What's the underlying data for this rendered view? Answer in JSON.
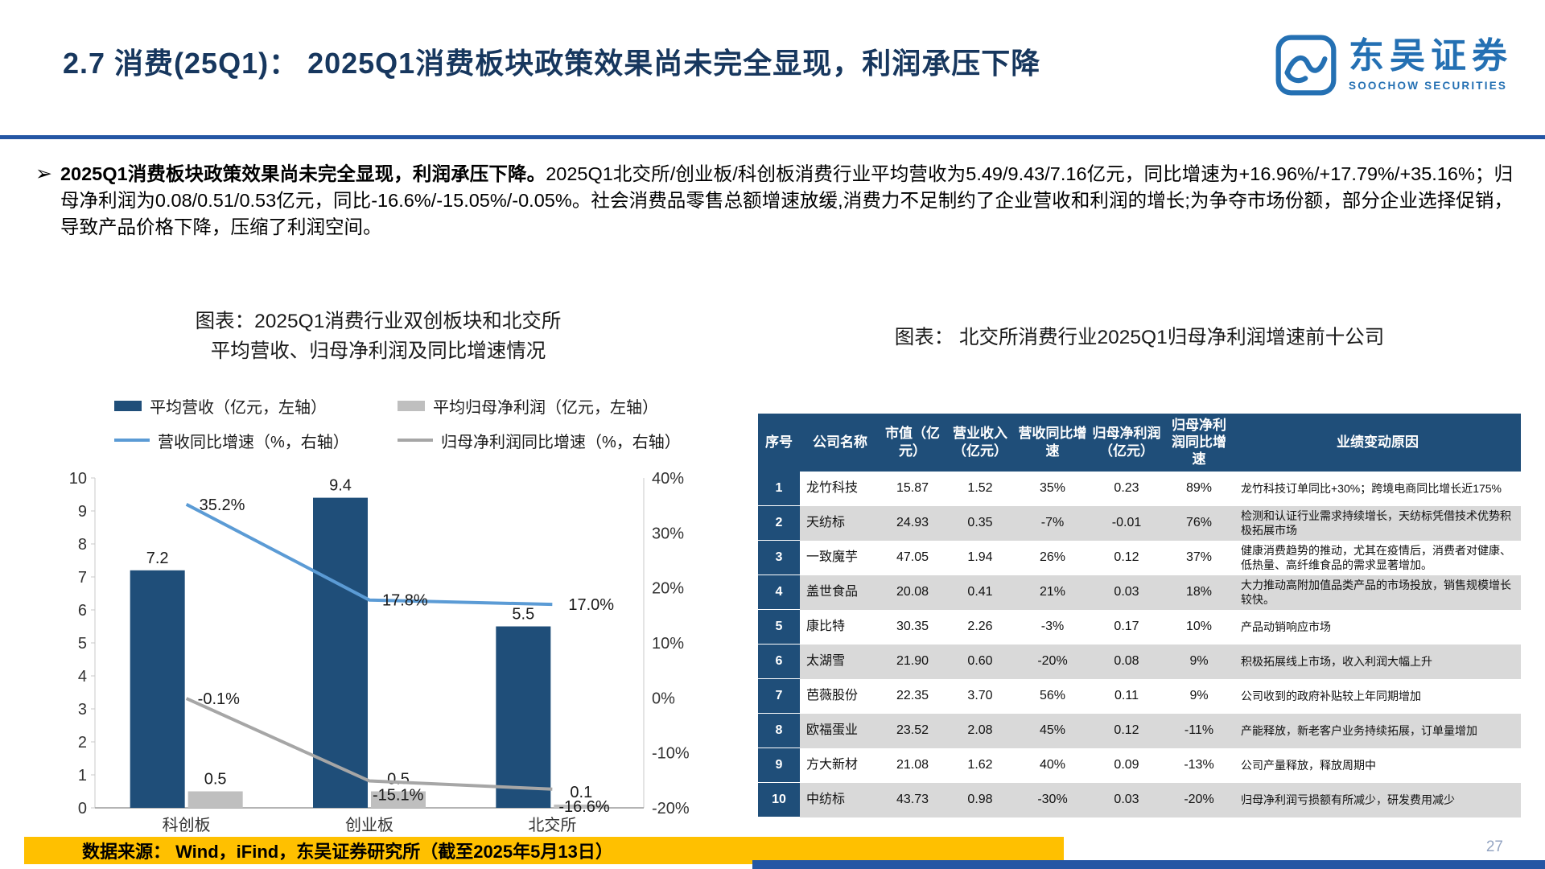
{
  "page": {
    "title": "2.7 消费(25Q1)： 2025Q1消费板块政策效果尚未完全显现，利润承压下降",
    "page_number": "27",
    "accent_blue": "#1F4E79",
    "divider_blue": "#2456A4",
    "footer_orange": "#FFC000"
  },
  "logo": {
    "cn": "东吴证券",
    "en": "SOOCHOW SECURITIES"
  },
  "summary": {
    "marker": "➢",
    "lead": "2025Q1消费板块政策效果尚未完全显现，利润承压下降。",
    "body": "2025Q1北交所/创业板/科创板消费行业平均营收为5.49/9.43/7.16亿元，同比增速为+16.96%/+17.79%/+35.16%；归母净利润为0.08/0.51/0.53亿元，同比-16.6%/-15.05%/-0.05%。社会消费品零售总额增速放缓,消费力不足制约了企业营收和利润的增长;为争夺市场份额，部分企业选择促销，导致产品价格下降，压缩了利润空间。"
  },
  "chart": {
    "title_line1": "图表：2025Q1消费行业双创板块和北交所",
    "title_line2": "平均营收、归母净利润及同比增速情况"
  },
  "chart_data": {
    "type": "bar+line",
    "title": "2025Q1消费行业双创板块和北交所平均营收、归母净利润及同比增速情况",
    "categories": [
      "科创板",
      "创业板",
      "北交所"
    ],
    "bar_series": [
      {
        "name": "平均营收（亿元，左轴）",
        "color": "#1F4E79",
        "axis": "left",
        "values": [
          7.2,
          9.4,
          5.5
        ],
        "labels": [
          "7.2",
          "9.4",
          "5.5"
        ]
      },
      {
        "name": "平均归母净利润（亿元，左轴）",
        "color": "#BFBFBF",
        "axis": "left",
        "values": [
          0.5,
          0.5,
          0.1
        ],
        "labels": [
          "0.5",
          "0.5",
          "0.1"
        ]
      }
    ],
    "line_series": [
      {
        "name": "营收同比增速（%，右轴）",
        "color": "#5B9BD5",
        "axis": "right",
        "values": [
          35.2,
          17.8,
          17.0
        ],
        "labels": [
          "35.2%",
          "17.8%",
          "17.0%"
        ]
      },
      {
        "name": "归母净利润同比增速（%，右轴）",
        "color": "#A6A6A6",
        "axis": "right",
        "values": [
          -0.1,
          -15.1,
          -16.6
        ],
        "labels": [
          "-0.1%",
          "-15.1%",
          "-16.6%"
        ]
      }
    ],
    "left_axis": {
      "min": 0,
      "max": 10,
      "step": 1
    },
    "right_axis": {
      "min": -20,
      "max": 40,
      "step": 10,
      "suffix": "%"
    },
    "grid": false,
    "legend_position": "top"
  },
  "table": {
    "title": "图表： 北交所消费行业2025Q1归母净利润增速前十公司",
    "headers": [
      "序号",
      "公司名称",
      "市值（亿元）",
      "营业收入（亿元）",
      "营收同比增速",
      "归母净利润（亿元）",
      "归母净利润同比增速",
      "业绩变动原因"
    ],
    "rows": [
      {
        "no": "1",
        "name": "龙竹科技",
        "market_cap": "15.87",
        "revenue": "1.52",
        "revenue_yoy": "35%",
        "profit": "0.23",
        "profit_yoy": "89%",
        "reason": "龙竹科技订单同比+30%；跨境电商同比增长近175%"
      },
      {
        "no": "2",
        "name": "天纺标",
        "market_cap": "24.93",
        "revenue": "0.35",
        "revenue_yoy": "-7%",
        "profit": "-0.01",
        "profit_yoy": "76%",
        "reason": "检测和认证行业需求持续增长，天纺标凭借技术优势积极拓展市场"
      },
      {
        "no": "3",
        "name": "一致魔芋",
        "market_cap": "47.05",
        "revenue": "1.94",
        "revenue_yoy": "26%",
        "profit": "0.12",
        "profit_yoy": "37%",
        "reason": "健康消费趋势的推动，尤其在疫情后，消费者对健康、低热量、高纤维食品的需求显著增加。"
      },
      {
        "no": "4",
        "name": "盖世食品",
        "market_cap": "20.08",
        "revenue": "0.41",
        "revenue_yoy": "21%",
        "profit": "0.03",
        "profit_yoy": "18%",
        "reason": "大力推动高附加值品类产品的市场投放，销售规模增长较快。"
      },
      {
        "no": "5",
        "name": "康比特",
        "market_cap": "30.35",
        "revenue": "2.26",
        "revenue_yoy": "-3%",
        "profit": "0.17",
        "profit_yoy": "10%",
        "reason": "产品动销响应市场"
      },
      {
        "no": "6",
        "name": "太湖雪",
        "market_cap": "21.90",
        "revenue": "0.60",
        "revenue_yoy": "-20%",
        "profit": "0.08",
        "profit_yoy": "9%",
        "reason": "积极拓展线上市场，收入利润大幅上升"
      },
      {
        "no": "7",
        "name": "芭薇股份",
        "market_cap": "22.35",
        "revenue": "3.70",
        "revenue_yoy": "56%",
        "profit": "0.11",
        "profit_yoy": "9%",
        "reason": "公司收到的政府补贴较上年同期增加"
      },
      {
        "no": "8",
        "name": "欧福蛋业",
        "market_cap": "23.52",
        "revenue": "2.08",
        "revenue_yoy": "45%",
        "profit": "0.12",
        "profit_yoy": "-11%",
        "reason": "产能释放，新老客户业务持续拓展，订单量增加"
      },
      {
        "no": "9",
        "name": "方大新材",
        "market_cap": "21.08",
        "revenue": "1.62",
        "revenue_yoy": "40%",
        "profit": "0.09",
        "profit_yoy": "-13%",
        "reason": "公司产量释放，释放周期中"
      },
      {
        "no": "10",
        "name": "中纺标",
        "market_cap": "43.73",
        "revenue": "0.98",
        "revenue_yoy": "-30%",
        "profit": "0.03",
        "profit_yoy": "-20%",
        "reason": "归母净利润亏损额有所减少，研发费用减少"
      }
    ]
  },
  "footer": {
    "source": "数据来源： Wind，iFind，东吴证券研究所（截至2025年5月13日）"
  }
}
